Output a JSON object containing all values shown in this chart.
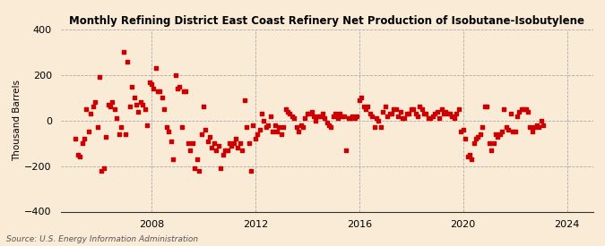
{
  "title": "Monthly Refining District East Coast Refinery Net Production of Isobutane-Isobutylene",
  "ylabel": "Thousand Barrels",
  "source": "Source: U.S. Energy Information Administration",
  "background_color": "#faebd7",
  "marker_color": "#cc0000",
  "ylim": [
    -400,
    400
  ],
  "yticks": [
    -400,
    -200,
    0,
    200,
    400
  ],
  "xlim_start": 2004.5,
  "xlim_end": 2025.0,
  "xticks": [
    2008,
    2012,
    2016,
    2020,
    2024
  ],
  "data": [
    [
      2005.08,
      -80
    ],
    [
      2005.17,
      -150
    ],
    [
      2005.25,
      -160
    ],
    [
      2005.33,
      -100
    ],
    [
      2005.42,
      -80
    ],
    [
      2005.5,
      50
    ],
    [
      2005.58,
      -50
    ],
    [
      2005.67,
      30
    ],
    [
      2005.75,
      60
    ],
    [
      2005.83,
      80
    ],
    [
      2005.92,
      -30
    ],
    [
      2006.0,
      190
    ],
    [
      2006.08,
      -220
    ],
    [
      2006.17,
      -210
    ],
    [
      2006.25,
      -70
    ],
    [
      2006.33,
      70
    ],
    [
      2006.42,
      60
    ],
    [
      2006.5,
      80
    ],
    [
      2006.58,
      50
    ],
    [
      2006.67,
      10
    ],
    [
      2006.75,
      -60
    ],
    [
      2006.83,
      -30
    ],
    [
      2006.92,
      300
    ],
    [
      2007.0,
      -60
    ],
    [
      2007.08,
      260
    ],
    [
      2007.17,
      60
    ],
    [
      2007.25,
      150
    ],
    [
      2007.33,
      100
    ],
    [
      2007.42,
      70
    ],
    [
      2007.5,
      40
    ],
    [
      2007.58,
      80
    ],
    [
      2007.67,
      70
    ],
    [
      2007.75,
      50
    ],
    [
      2007.83,
      -20
    ],
    [
      2007.92,
      170
    ],
    [
      2008.0,
      160
    ],
    [
      2008.08,
      140
    ],
    [
      2008.17,
      230
    ],
    [
      2008.25,
      130
    ],
    [
      2008.33,
      130
    ],
    [
      2008.42,
      100
    ],
    [
      2008.5,
      50
    ],
    [
      2008.58,
      -30
    ],
    [
      2008.67,
      -50
    ],
    [
      2008.75,
      -90
    ],
    [
      2008.83,
      -170
    ],
    [
      2008.92,
      200
    ],
    [
      2009.0,
      140
    ],
    [
      2009.08,
      150
    ],
    [
      2009.17,
      -30
    ],
    [
      2009.25,
      130
    ],
    [
      2009.33,
      130
    ],
    [
      2009.42,
      -100
    ],
    [
      2009.5,
      -130
    ],
    [
      2009.58,
      -100
    ],
    [
      2009.67,
      -210
    ],
    [
      2009.75,
      -170
    ],
    [
      2009.83,
      -220
    ],
    [
      2009.92,
      -60
    ],
    [
      2010.0,
      60
    ],
    [
      2010.08,
      -40
    ],
    [
      2010.17,
      -90
    ],
    [
      2010.25,
      -70
    ],
    [
      2010.33,
      -120
    ],
    [
      2010.42,
      -100
    ],
    [
      2010.5,
      -130
    ],
    [
      2010.58,
      -110
    ],
    [
      2010.67,
      -210
    ],
    [
      2010.75,
      -150
    ],
    [
      2010.83,
      -130
    ],
    [
      2010.92,
      -130
    ],
    [
      2011.0,
      -100
    ],
    [
      2011.08,
      -110
    ],
    [
      2011.17,
      -100
    ],
    [
      2011.25,
      -80
    ],
    [
      2011.33,
      -120
    ],
    [
      2011.42,
      -100
    ],
    [
      2011.5,
      -130
    ],
    [
      2011.58,
      90
    ],
    [
      2011.67,
      -30
    ],
    [
      2011.75,
      -100
    ],
    [
      2011.83,
      -220
    ],
    [
      2011.92,
      -20
    ],
    [
      2012.0,
      -80
    ],
    [
      2012.08,
      -60
    ],
    [
      2012.17,
      -40
    ],
    [
      2012.25,
      30
    ],
    [
      2012.33,
      0
    ],
    [
      2012.42,
      -30
    ],
    [
      2012.5,
      -20
    ],
    [
      2012.58,
      20
    ],
    [
      2012.67,
      -50
    ],
    [
      2012.75,
      -20
    ],
    [
      2012.83,
      -50
    ],
    [
      2012.92,
      -30
    ],
    [
      2013.0,
      -60
    ],
    [
      2013.08,
      -30
    ],
    [
      2013.17,
      50
    ],
    [
      2013.25,
      40
    ],
    [
      2013.33,
      30
    ],
    [
      2013.42,
      20
    ],
    [
      2013.5,
      10
    ],
    [
      2013.58,
      -30
    ],
    [
      2013.67,
      -50
    ],
    [
      2013.75,
      -20
    ],
    [
      2013.83,
      -30
    ],
    [
      2013.92,
      10
    ],
    [
      2014.0,
      30
    ],
    [
      2014.08,
      30
    ],
    [
      2014.17,
      40
    ],
    [
      2014.25,
      20
    ],
    [
      2014.33,
      0
    ],
    [
      2014.42,
      20
    ],
    [
      2014.5,
      20
    ],
    [
      2014.58,
      30
    ],
    [
      2014.67,
      10
    ],
    [
      2014.75,
      -10
    ],
    [
      2014.83,
      -20
    ],
    [
      2014.92,
      -30
    ],
    [
      2015.0,
      20
    ],
    [
      2015.08,
      30
    ],
    [
      2015.17,
      10
    ],
    [
      2015.25,
      30
    ],
    [
      2015.33,
      20
    ],
    [
      2015.42,
      20
    ],
    [
      2015.5,
      -130
    ],
    [
      2015.58,
      10
    ],
    [
      2015.67,
      10
    ],
    [
      2015.75,
      20
    ],
    [
      2015.83,
      10
    ],
    [
      2015.92,
      20
    ],
    [
      2016.0,
      90
    ],
    [
      2016.08,
      100
    ],
    [
      2016.17,
      60
    ],
    [
      2016.25,
      50
    ],
    [
      2016.33,
      60
    ],
    [
      2016.42,
      30
    ],
    [
      2016.5,
      20
    ],
    [
      2016.58,
      -30
    ],
    [
      2016.67,
      10
    ],
    [
      2016.75,
      0
    ],
    [
      2016.83,
      -30
    ],
    [
      2016.92,
      40
    ],
    [
      2017.0,
      60
    ],
    [
      2017.08,
      20
    ],
    [
      2017.17,
      30
    ],
    [
      2017.25,
      30
    ],
    [
      2017.33,
      50
    ],
    [
      2017.42,
      50
    ],
    [
      2017.5,
      20
    ],
    [
      2017.58,
      40
    ],
    [
      2017.67,
      10
    ],
    [
      2017.75,
      10
    ],
    [
      2017.83,
      30
    ],
    [
      2017.92,
      30
    ],
    [
      2018.0,
      50
    ],
    [
      2018.08,
      50
    ],
    [
      2018.17,
      30
    ],
    [
      2018.25,
      20
    ],
    [
      2018.33,
      60
    ],
    [
      2018.42,
      50
    ],
    [
      2018.5,
      30
    ],
    [
      2018.58,
      30
    ],
    [
      2018.67,
      10
    ],
    [
      2018.75,
      10
    ],
    [
      2018.83,
      20
    ],
    [
      2018.92,
      30
    ],
    [
      2019.0,
      40
    ],
    [
      2019.08,
      10
    ],
    [
      2019.17,
      50
    ],
    [
      2019.25,
      30
    ],
    [
      2019.33,
      40
    ],
    [
      2019.42,
      30
    ],
    [
      2019.5,
      30
    ],
    [
      2019.58,
      20
    ],
    [
      2019.67,
      10
    ],
    [
      2019.75,
      30
    ],
    [
      2019.83,
      50
    ],
    [
      2019.92,
      -50
    ],
    [
      2020.0,
      -40
    ],
    [
      2020.08,
      -80
    ],
    [
      2020.17,
      -160
    ],
    [
      2020.25,
      -150
    ],
    [
      2020.33,
      -170
    ],
    [
      2020.42,
      -100
    ],
    [
      2020.5,
      -80
    ],
    [
      2020.58,
      -70
    ],
    [
      2020.67,
      -60
    ],
    [
      2020.75,
      -30
    ],
    [
      2020.83,
      60
    ],
    [
      2020.92,
      60
    ],
    [
      2021.0,
      -100
    ],
    [
      2021.08,
      -130
    ],
    [
      2021.17,
      -100
    ],
    [
      2021.25,
      -60
    ],
    [
      2021.33,
      -70
    ],
    [
      2021.42,
      -60
    ],
    [
      2021.5,
      -50
    ],
    [
      2021.58,
      50
    ],
    [
      2021.67,
      -30
    ],
    [
      2021.75,
      -40
    ],
    [
      2021.83,
      30
    ],
    [
      2021.92,
      -50
    ],
    [
      2022.0,
      -50
    ],
    [
      2022.08,
      20
    ],
    [
      2022.17,
      40
    ],
    [
      2022.25,
      50
    ],
    [
      2022.33,
      50
    ],
    [
      2022.42,
      50
    ],
    [
      2022.5,
      40
    ],
    [
      2022.58,
      -30
    ],
    [
      2022.67,
      -50
    ],
    [
      2022.75,
      -30
    ],
    [
      2022.83,
      -20
    ],
    [
      2022.92,
      -30
    ],
    [
      2023.0,
      0
    ],
    [
      2023.08,
      -20
    ]
  ]
}
